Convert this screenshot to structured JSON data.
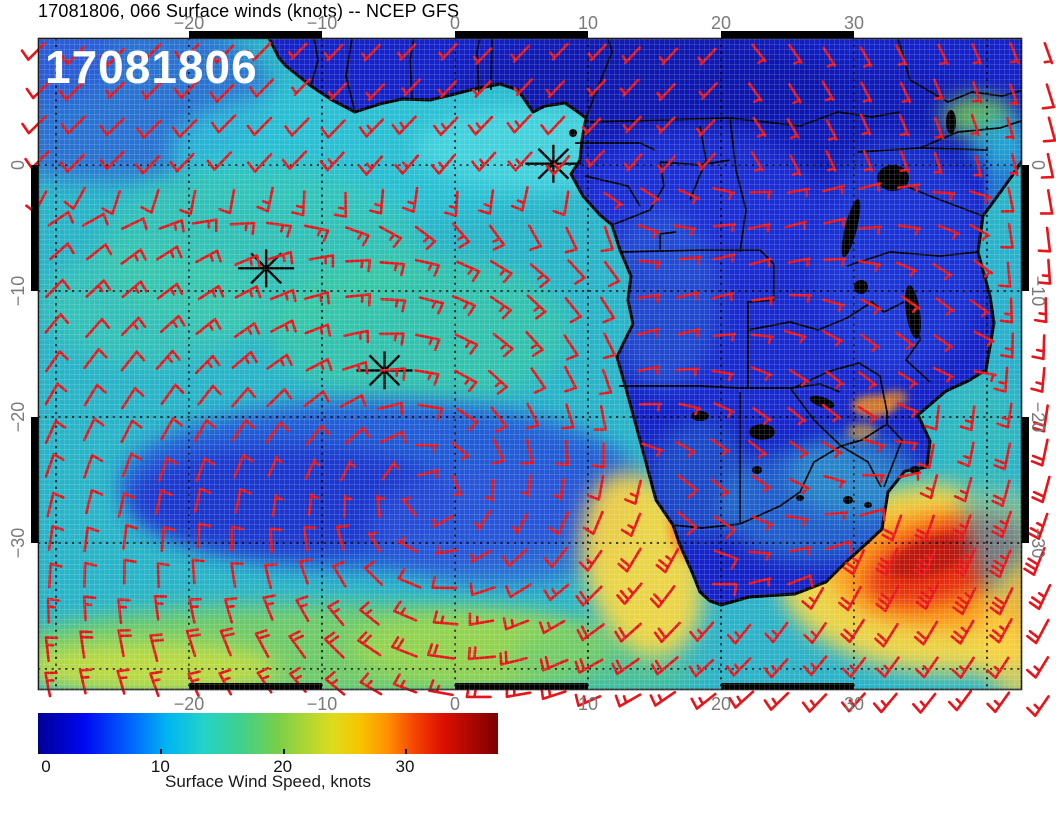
{
  "title": "17081806, 066 Surface winds (knots) -- NCEP GFS",
  "overlay_label": "17081806",
  "axis": {
    "lon_ticks": [
      {
        "label": "−20",
        "value": -20
      },
      {
        "label": "−10",
        "value": -10
      },
      {
        "label": "0",
        "value": 0
      },
      {
        "label": "10",
        "value": 10
      },
      {
        "label": "20",
        "value": 20
      },
      {
        "label": "30",
        "value": 30
      }
    ],
    "lat_ticks": [
      {
        "label": "0",
        "value": 0
      },
      {
        "label": "−10",
        "value": -10
      },
      {
        "label": "−20",
        "value": -20
      },
      {
        "label": "−30",
        "value": -30
      }
    ]
  },
  "stars": [
    {
      "lon": 7.4,
      "lat": 0.1
    },
    {
      "lon": -14.2,
      "lat": -8.2
    },
    {
      "lon": -5.3,
      "lat": -16.3
    }
  ],
  "colorbar": {
    "label": "Surface Wind Speed, knots",
    "min": 0,
    "max": 37.6,
    "ticks": [
      {
        "label": "0",
        "value": 0
      },
      {
        "label": "10",
        "value": 10
      },
      {
        "label": "20",
        "value": 20
      },
      {
        "label": "30",
        "value": 30
      }
    ],
    "stops": [
      [
        "0%",
        "#000096"
      ],
      [
        "10%",
        "#0008f0"
      ],
      [
        "20%",
        "#0064ff"
      ],
      [
        "28%",
        "#00b4f0"
      ],
      [
        "36%",
        "#22d4c8"
      ],
      [
        "44%",
        "#3ed08c"
      ],
      [
        "52%",
        "#77cf4a"
      ],
      [
        "58%",
        "#abd633"
      ],
      [
        "64%",
        "#dcdc1e"
      ],
      [
        "70%",
        "#f5c400"
      ],
      [
        "76%",
        "#ff9000"
      ],
      [
        "82%",
        "#f44300"
      ],
      [
        "88%",
        "#dd1000"
      ],
      [
        "100%",
        "#7d0000"
      ]
    ]
  },
  "colors": {
    "barb": "#e81419",
    "coast": "#000000",
    "land_base": "#1523c6",
    "ocean_base": "#2ab4c8",
    "grid": "#000000",
    "frame": "#1a1a1a",
    "tick_label": "#7a7a7a",
    "title_text": "#000000",
    "overlay_text": "#ffffff",
    "star": "#000000",
    "caption": "#1a1a1a"
  }
}
